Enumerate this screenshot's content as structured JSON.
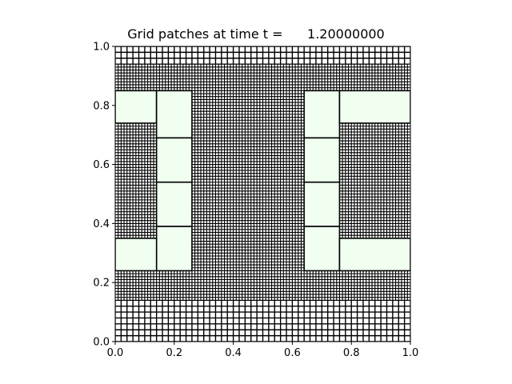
{
  "title": "Grid patches at time t =      1.20000000",
  "colors": {
    "background": "#ffffff",
    "grid_line": "#000000",
    "coarse_cell": "#ffffff",
    "patch_fill": "#f0fff0",
    "axis": "#000000"
  },
  "chart_data": {
    "type": "heatmap",
    "title": "Grid patches at time t =      1.20000000",
    "xlabel": "",
    "ylabel": "",
    "xlim": [
      0.0,
      1.0
    ],
    "ylim": [
      0.0,
      1.0
    ],
    "xticks": [
      "0.0",
      "0.2",
      "0.4",
      "0.6",
      "0.8",
      "1.0"
    ],
    "yticks": [
      "0.0",
      "0.2",
      "0.4",
      "0.6",
      "0.8",
      "1.0"
    ],
    "grid": false,
    "regions": [
      {
        "level": "coarse",
        "x": [
          0.0,
          1.0
        ],
        "y": [
          0.0,
          0.14
        ],
        "cell": 0.02
      },
      {
        "level": "coarse",
        "x": [
          0.0,
          1.0
        ],
        "y": [
          0.94,
          1.0
        ],
        "cell": 0.02
      },
      {
        "level": "fine",
        "x": [
          0.0,
          1.0
        ],
        "y": [
          0.14,
          0.94
        ],
        "cell": 0.01
      }
    ],
    "patches": [
      {
        "x": [
          0.0,
          0.14
        ],
        "y": [
          0.74,
          0.85
        ]
      },
      {
        "x": [
          0.14,
          0.26
        ],
        "y": [
          0.69,
          0.85
        ]
      },
      {
        "x": [
          0.14,
          0.26
        ],
        "y": [
          0.54,
          0.69
        ]
      },
      {
        "x": [
          0.14,
          0.26
        ],
        "y": [
          0.39,
          0.54
        ]
      },
      {
        "x": [
          0.14,
          0.26
        ],
        "y": [
          0.24,
          0.39
        ]
      },
      {
        "x": [
          0.0,
          0.14
        ],
        "y": [
          0.24,
          0.35
        ]
      },
      {
        "x": [
          0.64,
          0.76
        ],
        "y": [
          0.69,
          0.85
        ]
      },
      {
        "x": [
          0.64,
          0.76
        ],
        "y": [
          0.54,
          0.69
        ]
      },
      {
        "x": [
          0.64,
          0.76
        ],
        "y": [
          0.39,
          0.54
        ]
      },
      {
        "x": [
          0.64,
          0.76
        ],
        "y": [
          0.24,
          0.39
        ]
      },
      {
        "x": [
          0.76,
          1.0
        ],
        "y": [
          0.74,
          0.85
        ]
      },
      {
        "x": [
          0.76,
          1.0
        ],
        "y": [
          0.24,
          0.35
        ]
      }
    ]
  }
}
